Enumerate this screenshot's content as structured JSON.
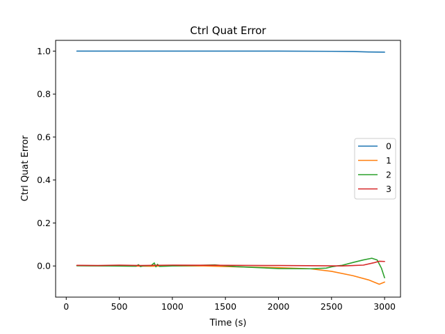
{
  "chart_data": {
    "type": "line",
    "title": "Ctrl Quat Error",
    "xlabel": "Time (s)",
    "ylabel": "Ctrl Quat Error",
    "xlim": [
      -100,
      3150
    ],
    "ylim": [
      -0.145,
      1.05
    ],
    "xticks": [
      0,
      500,
      1000,
      1500,
      2000,
      2500,
      3000
    ],
    "yticks": [
      0.0,
      0.2,
      0.4,
      0.6,
      0.8,
      1.0
    ],
    "xtick_labels": [
      "0",
      "500",
      "1000",
      "1500",
      "2000",
      "2500",
      "3000"
    ],
    "ytick_labels": [
      "0.0",
      "0.2",
      "0.4",
      "0.6",
      "0.8",
      "1.0"
    ],
    "grid": false,
    "legend_position": "right",
    "series": [
      {
        "name": "0",
        "color": "#1f77b4",
        "points": [
          [
            100,
            1.0
          ],
          [
            500,
            1.0
          ],
          [
            1000,
            1.0
          ],
          [
            1500,
            1.0
          ],
          [
            2000,
            1.0
          ],
          [
            2500,
            0.999
          ],
          [
            2700,
            0.998
          ],
          [
            2850,
            0.996
          ],
          [
            3000,
            0.995
          ]
        ]
      },
      {
        "name": "1",
        "color": "#ff7f0e",
        "points": [
          [
            100,
            0.002
          ],
          [
            300,
            0.001
          ],
          [
            500,
            0.0
          ],
          [
            800,
            -0.001
          ],
          [
            1000,
            0.0
          ],
          [
            1300,
            0.0
          ],
          [
            1600,
            -0.004
          ],
          [
            2000,
            -0.008
          ],
          [
            2300,
            -0.013
          ],
          [
            2500,
            -0.025
          ],
          [
            2700,
            -0.045
          ],
          [
            2850,
            -0.065
          ],
          [
            2950,
            -0.085
          ],
          [
            3000,
            -0.075
          ]
        ]
      },
      {
        "name": "2",
        "color": "#2ca02c",
        "points": [
          [
            100,
            0.001
          ],
          [
            400,
            0.0
          ],
          [
            660,
            -0.001
          ],
          [
            680,
            0.006
          ],
          [
            700,
            -0.003
          ],
          [
            720,
            0.0
          ],
          [
            800,
            0.002
          ],
          [
            830,
            0.014
          ],
          [
            845,
            -0.004
          ],
          [
            860,
            0.008
          ],
          [
            880,
            -0.002
          ],
          [
            1000,
            0.0
          ],
          [
            1200,
            0.002
          ],
          [
            1400,
            0.005
          ],
          [
            1600,
            -0.003
          ],
          [
            2000,
            -0.012
          ],
          [
            2300,
            -0.013
          ],
          [
            2450,
            -0.01
          ],
          [
            2500,
            -0.004
          ],
          [
            2550,
            0.0
          ],
          [
            2600,
            0.003
          ],
          [
            2700,
            0.016
          ],
          [
            2800,
            0.028
          ],
          [
            2880,
            0.036
          ],
          [
            2930,
            0.028
          ],
          [
            2970,
            -0.01
          ],
          [
            3000,
            -0.055
          ]
        ]
      },
      {
        "name": "3",
        "color": "#d62728",
        "points": [
          [
            100,
            0.003
          ],
          [
            300,
            0.002
          ],
          [
            500,
            0.004
          ],
          [
            700,
            0.002
          ],
          [
            1000,
            0.004
          ],
          [
            1500,
            0.003
          ],
          [
            2000,
            0.002
          ],
          [
            2400,
            0.001
          ],
          [
            2600,
            0.0
          ],
          [
            2800,
            0.004
          ],
          [
            2900,
            0.015
          ],
          [
            2950,
            0.022
          ],
          [
            3000,
            0.021
          ]
        ]
      }
    ]
  }
}
